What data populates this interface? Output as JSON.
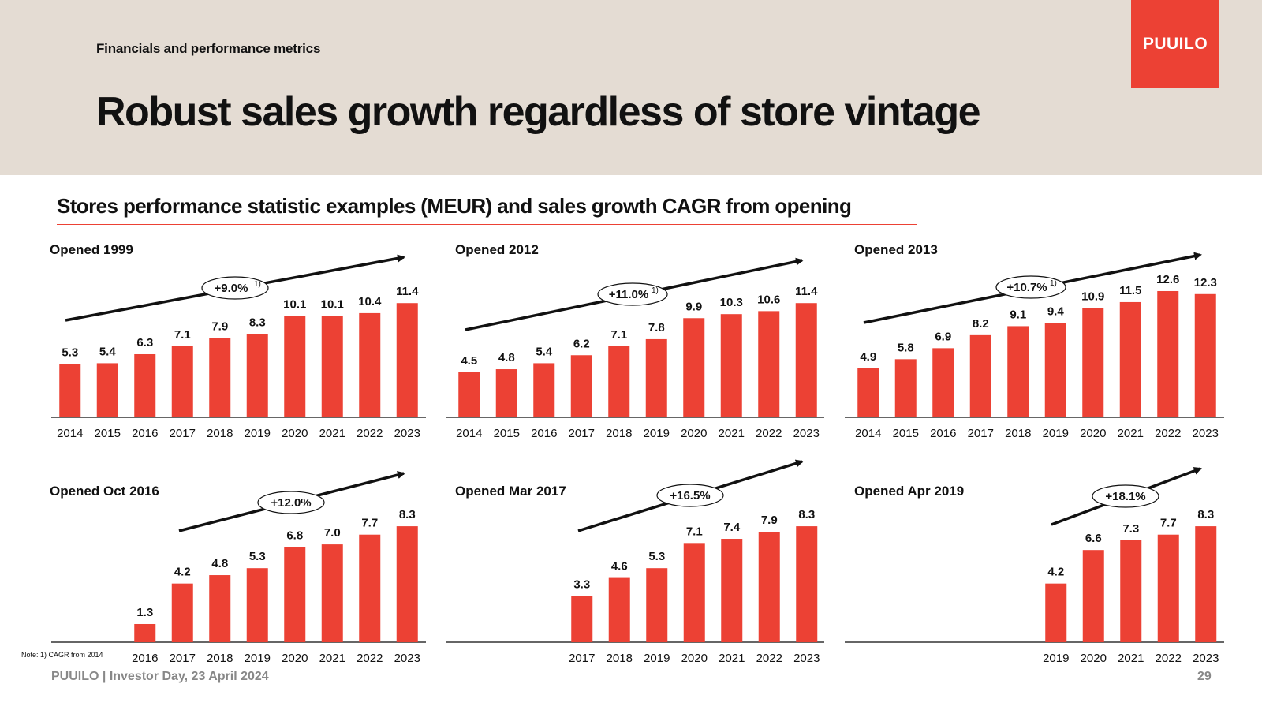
{
  "header": {
    "section_label": "Financials and performance metrics",
    "title": "Robust sales growth regardless of store vintage",
    "logo_text": "PUUILO"
  },
  "subtitle": "Stores performance statistic  examples (MEUR) and  sales growth CAGR from opening",
  "chart_data": [
    {
      "type": "bar",
      "title": "Opened 1999",
      "categories": [
        "2014",
        "2015",
        "2016",
        "2017",
        "2018",
        "2019",
        "2020",
        "2021",
        "2022",
        "2023"
      ],
      "values": [
        5.3,
        5.4,
        6.3,
        7.1,
        7.9,
        8.3,
        10.1,
        10.1,
        10.4,
        11.4
      ],
      "labels": [
        "5.3",
        "5.4",
        "6.3",
        "7.1",
        "7.9",
        "8.3",
        "10.1",
        "10.1",
        "10.4",
        "11.4"
      ],
      "cagr": "+9.0%",
      "cagr_note": "1)"
    },
    {
      "type": "bar",
      "title": "Opened 2012",
      "categories": [
        "2014",
        "2015",
        "2016",
        "2017",
        "2018",
        "2019",
        "2020",
        "2021",
        "2022",
        "2023"
      ],
      "values": [
        4.5,
        4.8,
        5.4,
        6.2,
        7.1,
        7.8,
        9.9,
        10.3,
        10.6,
        11.4
      ],
      "labels": [
        "4.5",
        "4.8",
        "5.4",
        "6.2",
        "7.1",
        "7.8",
        "9.9",
        "10.3",
        "10.6",
        "11.4"
      ],
      "cagr": "+11.0%",
      "cagr_note": "1)"
    },
    {
      "type": "bar",
      "title": "Opened 2013",
      "categories": [
        "2014",
        "2015",
        "2016",
        "2017",
        "2018",
        "2019",
        "2020",
        "2021",
        "2022",
        "2023"
      ],
      "values": [
        4.9,
        5.8,
        6.9,
        8.2,
        9.1,
        9.4,
        10.9,
        11.5,
        12.6,
        12.3
      ],
      "labels": [
        "4.9",
        "5.8",
        "6.9",
        "8.2",
        "9.1",
        "9.4",
        "10.9",
        "11.5",
        "12.6",
        "12.3"
      ],
      "cagr": "+10.7%",
      "cagr_note": "1)"
    },
    {
      "type": "bar",
      "title": "Opened Oct 2016",
      "categories": [
        "2016",
        "2017",
        "2018",
        "2019",
        "2020",
        "2021",
        "2022",
        "2023"
      ],
      "values": [
        1.3,
        4.2,
        4.8,
        5.3,
        6.8,
        7.0,
        7.7,
        8.3
      ],
      "labels": [
        "1.3",
        "4.2",
        "4.8",
        "5.3",
        "6.8",
        "7.0",
        "7.7",
        "8.3"
      ],
      "cagr": "+12.0%",
      "cagr_note": ""
    },
    {
      "type": "bar",
      "title": "Opened Mar 2017",
      "categories": [
        "2017",
        "2018",
        "2019",
        "2020",
        "2021",
        "2022",
        "2023"
      ],
      "values": [
        3.3,
        4.6,
        5.3,
        7.1,
        7.4,
        7.9,
        8.3
      ],
      "labels": [
        "3.3",
        "4.6",
        "5.3",
        "7.1",
        "7.4",
        "7.9",
        "8.3"
      ],
      "cagr": "+16.5%",
      "cagr_note": ""
    },
    {
      "type": "bar",
      "title": "Opened Apr 2019",
      "categories": [
        "2019",
        "2020",
        "2021",
        "2022",
        "2023"
      ],
      "values": [
        4.2,
        6.6,
        7.3,
        7.7,
        8.3
      ],
      "labels": [
        "4.2",
        "6.6",
        "7.3",
        "7.7",
        "8.3"
      ],
      "cagr": "+18.1%",
      "cagr_note": ""
    }
  ],
  "colors": {
    "bar": "#ec4134",
    "accent": "#ec4134",
    "header_bg": "#e4dcd3"
  },
  "note": "Note: 1) CAGR from 2014",
  "footer": "PUUILO | Investor Day, 23 April 2024",
  "page_number": "29"
}
